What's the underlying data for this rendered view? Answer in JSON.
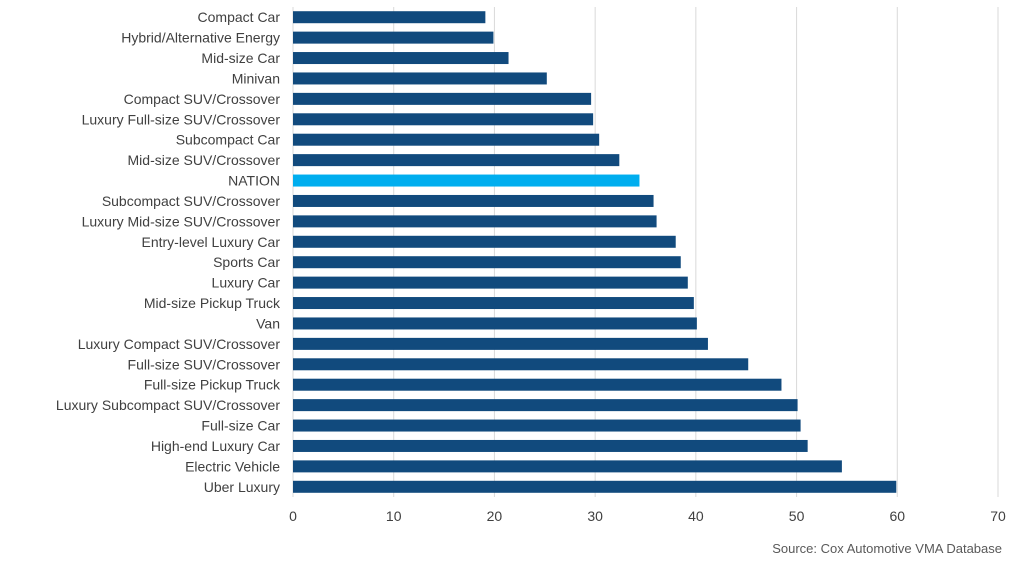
{
  "chart_data": {
    "type": "bar",
    "orientation": "horizontal",
    "categories": [
      "Compact Car",
      "Hybrid/Alternative Energy",
      "Mid-size Car",
      "Minivan",
      "Compact SUV/Crossover",
      "Luxury Full-size SUV/Crossover",
      "Subcompact Car",
      "Mid-size SUV/Crossover",
      "NATION",
      "Subcompact SUV/Crossover",
      "Luxury Mid-size SUV/Crossover",
      "Entry-level Luxury Car",
      "Sports Car",
      "Luxury Car",
      "Mid-size Pickup Truck",
      "Van",
      "Luxury Compact SUV/Crossover",
      "Full-size SUV/Crossover",
      "Full-size Pickup Truck",
      "Luxury Subcompact SUV/Crossover",
      "Full-size Car",
      "High-end Luxury Car",
      "Electric Vehicle",
      "Uber Luxury"
    ],
    "values": [
      19.1,
      19.9,
      21.4,
      25.2,
      29.6,
      29.8,
      30.4,
      32.4,
      34.4,
      35.8,
      36.1,
      38.0,
      38.5,
      39.2,
      39.8,
      40.1,
      41.2,
      45.2,
      48.5,
      50.1,
      50.4,
      51.1,
      54.5,
      59.9
    ],
    "highlight": "NATION",
    "xlim": [
      0,
      70
    ],
    "xticks": [
      "0",
      "10",
      "20",
      "30",
      "40",
      "50",
      "60",
      "70"
    ],
    "grid": "vertical",
    "colors": {
      "bar": "#114a7d",
      "highlight": "#00aeef",
      "grid": "#d9d9d9",
      "label": "#404040"
    }
  },
  "source": "Source: Cox Automotive VMA Database"
}
